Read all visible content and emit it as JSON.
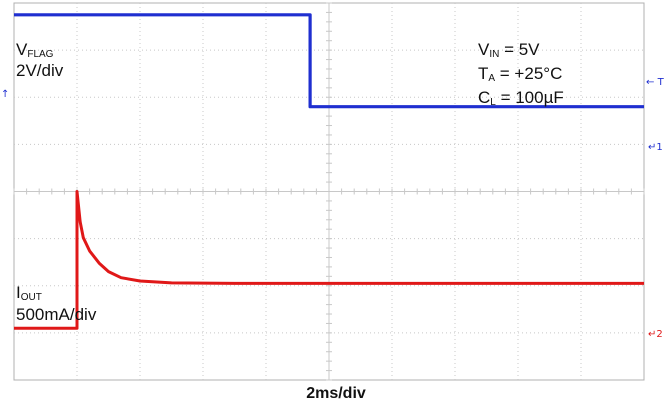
{
  "chart_data": {
    "type": "line",
    "x_scale": "2ms/div",
    "x_divisions": 10,
    "y_divisions": 8,
    "series": [
      {
        "name": "VFLAG",
        "label_main": "V",
        "label_sub": "FLAG",
        "scale": "2V/div",
        "color": "#1f2fd0",
        "x_div": [
          0,
          4.7,
          4.7,
          10
        ],
        "y_div": [
          7.75,
          7.75,
          5.8,
          5.8
        ]
      },
      {
        "name": "IOUT",
        "label_main": "I",
        "label_sub": "OUT",
        "scale": "500mA/div",
        "color": "#e01818",
        "x_div": [
          0,
          1.0,
          1.0,
          1.05,
          1.1,
          1.2,
          1.35,
          1.5,
          1.7,
          2.0,
          2.5,
          3.5,
          5,
          7,
          10
        ],
        "y_div": [
          1.1,
          1.1,
          4.0,
          3.35,
          3.02,
          2.74,
          2.48,
          2.3,
          2.17,
          2.1,
          2.06,
          2.05,
          2.05,
          2.05,
          2.05
        ]
      }
    ],
    "conditions": {
      "vin": {
        "main": "V",
        "sub": "IN",
        "rest": " = 5V"
      },
      "ta": {
        "main": "T",
        "sub": "A",
        "rest": " = +25°C"
      },
      "cl": {
        "main": "C",
        "sub": "L",
        "rest": " = 100µF"
      }
    },
    "markers": {
      "left_trigger": "T",
      "right_trigger": "T",
      "ch1": "1",
      "ch2": "2"
    },
    "colors": {
      "grid": "#c8c8c8",
      "frame": "#b0b0b0",
      "ch1": "#1f2fd0",
      "ch2": "#e01818"
    }
  }
}
